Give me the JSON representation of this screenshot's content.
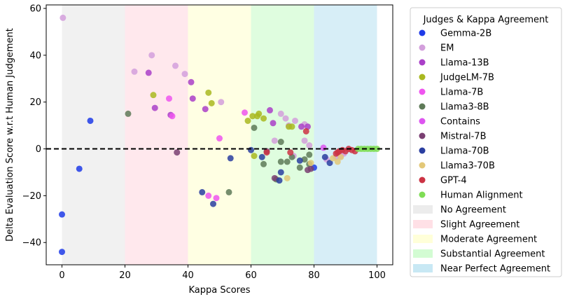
{
  "chart_data": {
    "type": "scatter",
    "xlabel": "Kappa Scores",
    "ylabel": "Delta Evaluation Score w.r.t Human Judgement",
    "xlim": [
      -5,
      105
    ],
    "ylim": [
      -49.5,
      61.5
    ],
    "xticks": [
      0,
      20,
      40,
      60,
      80,
      100
    ],
    "yticks": [
      -40,
      -20,
      0,
      20,
      40,
      60
    ],
    "reference_line": {
      "y": 0,
      "style": "dashed",
      "color": "#000000"
    },
    "legend": {
      "title": "Judges & Kappa Agreement",
      "placement": "outside-right"
    },
    "bands": [
      {
        "name": "No Agreement",
        "from": 0,
        "to": 20,
        "color": "#e6e6e6"
      },
      {
        "name": "Slight Agreement",
        "from": 20,
        "to": 40,
        "color": "#ffd5de"
      },
      {
        "name": "Moderate Agreement",
        "from": 40,
        "to": 60,
        "color": "#ffffcc"
      },
      {
        "name": "Substantial Agreement",
        "from": 60,
        "to": 80,
        "color": "#c4fbc4"
      },
      {
        "name": "Near Perfect Agreement",
        "from": 80,
        "to": 100,
        "color": "#b6e0f0"
      }
    ],
    "series": [
      {
        "name": "Gemma-2B",
        "color": "#1f3be8",
        "points": [
          [
            0,
            -28
          ],
          [
            0,
            -44
          ],
          [
            5.5,
            -8.5
          ],
          [
            9,
            12
          ],
          [
            80,
            -8
          ]
        ]
      },
      {
        "name": "EM",
        "color": "#d39fdc",
        "points": [
          [
            0.3,
            56
          ],
          [
            23,
            33
          ],
          [
            28.5,
            40
          ],
          [
            36,
            35.5
          ],
          [
            39,
            32
          ],
          [
            50.5,
            20
          ],
          [
            67.5,
            3.5
          ],
          [
            69.5,
            15
          ],
          [
            71,
            13
          ],
          [
            72,
            10
          ],
          [
            74,
            12
          ],
          [
            77,
            3.5
          ],
          [
            78.5,
            1.5
          ],
          [
            77,
            10.5
          ],
          [
            73.5,
            -3
          ],
          [
            84,
            -4.5
          ],
          [
            87,
            -3.5
          ],
          [
            88.5,
            -3
          ],
          [
            89.5,
            -2
          ]
        ]
      },
      {
        "name": "Llama-13B",
        "color": "#aa40c8",
        "points": [
          [
            27.5,
            32.5
          ],
          [
            29.5,
            17.5
          ],
          [
            34.5,
            14.5
          ],
          [
            41,
            28.5
          ],
          [
            41.5,
            21.5
          ],
          [
            45.5,
            17
          ],
          [
            66,
            16.5
          ],
          [
            67,
            11
          ],
          [
            76,
            9.5
          ],
          [
            78,
            9.5
          ]
        ]
      },
      {
        "name": "JudgeLM-7B",
        "color": "#a9b820",
        "points": [
          [
            29,
            23
          ],
          [
            46.5,
            24
          ],
          [
            47.5,
            19.5
          ],
          [
            59,
            12
          ],
          [
            60.5,
            14
          ],
          [
            62,
            14
          ],
          [
            62.5,
            15
          ],
          [
            64,
            13
          ],
          [
            72,
            9.5
          ],
          [
            73,
            9.5
          ],
          [
            61,
            -3
          ]
        ]
      },
      {
        "name": "Llama-7B",
        "color": "#ef55ef",
        "points": [
          [
            34,
            21.5
          ],
          [
            35,
            14
          ],
          [
            46.5,
            -20
          ],
          [
            49,
            -21
          ],
          [
            50,
            4.5
          ],
          [
            58,
            15.5
          ]
        ]
      },
      {
        "name": "Llama3-8B",
        "color": "#5e7a58",
        "points": [
          [
            21,
            15
          ],
          [
            61,
            9
          ],
          [
            64,
            -6.5
          ],
          [
            69.5,
            3
          ],
          [
            69.5,
            -5.5
          ],
          [
            71.5,
            -5.5
          ],
          [
            73,
            -3.5
          ],
          [
            75.5,
            -8
          ],
          [
            77,
            -4.5
          ],
          [
            78.5,
            -6.5
          ],
          [
            78.5,
            -2.5
          ],
          [
            53,
            -18.5
          ],
          [
            68,
            -13
          ]
        ]
      },
      {
        "name": "Contains",
        "color": "#dd55f0",
        "points": [
          [
            83,
            0.5
          ]
        ]
      },
      {
        "name": "Mistral-7B",
        "color": "#7a3f72",
        "points": [
          [
            36.5,
            -1.5
          ],
          [
            65,
            -1
          ],
          [
            67.5,
            -12.5
          ],
          [
            78,
            -9
          ],
          [
            79,
            -8.5
          ]
        ]
      },
      {
        "name": "Llama-70B",
        "color": "#2a3ea0",
        "points": [
          [
            44.5,
            -18.5
          ],
          [
            48,
            -23.5
          ],
          [
            53.5,
            -4
          ],
          [
            60,
            -0.5
          ],
          [
            63.5,
            -3.5
          ],
          [
            69,
            -13.5
          ],
          [
            69.5,
            -10
          ],
          [
            75.5,
            -5
          ],
          [
            83.5,
            -3.5
          ],
          [
            85,
            -6
          ]
        ]
      },
      {
        "name": "Llama3-70B",
        "color": "#e3c878",
        "points": [
          [
            71.5,
            -12.5
          ],
          [
            79,
            -6
          ],
          [
            86,
            -4
          ],
          [
            87.5,
            -5.5
          ],
          [
            88.5,
            -3.5
          ]
        ]
      },
      {
        "name": "GPT-4",
        "color": "#cc3344",
        "points": [
          [
            65,
            -1.5
          ],
          [
            72.5,
            -1.5
          ],
          [
            77.5,
            7.5
          ],
          [
            87,
            -2
          ],
          [
            87.5,
            -1.5
          ],
          [
            88,
            -1
          ],
          [
            89,
            -0.5
          ],
          [
            90,
            -1
          ],
          [
            91,
            0
          ],
          [
            92,
            -0.5
          ],
          [
            93,
            -1
          ]
        ]
      },
      {
        "name": "Human Alignment",
        "color": "#7fdd55",
        "points": [
          [
            94,
            0
          ],
          [
            95,
            0
          ],
          [
            96,
            0
          ],
          [
            97,
            0
          ],
          [
            98,
            0
          ],
          [
            99,
            0
          ],
          [
            100,
            0
          ]
        ]
      }
    ]
  }
}
